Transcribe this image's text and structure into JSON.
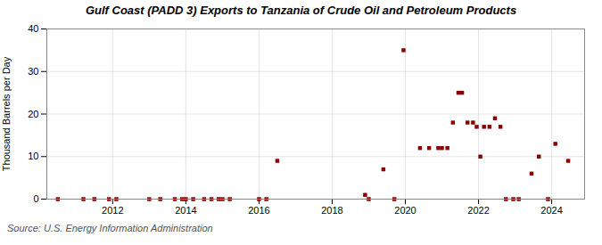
{
  "chart_data": {
    "type": "scatter",
    "title": "Gulf Coast (PADD 3) Exports to Tanzania of Crude Oil and Petroleum Products",
    "ylabel": "Thousand Barrels per Day",
    "source": "Source: U.S. Energy Information Administration",
    "color": "#8b0000",
    "marker": "square",
    "grid": true,
    "xlim": [
      2010.2,
      2024.9
    ],
    "xticks": [
      2012,
      2014,
      2016,
      2018,
      2020,
      2022,
      2024
    ],
    "ylim": [
      0,
      40
    ],
    "yticks": [
      0,
      10,
      20,
      30,
      40
    ],
    "x": [
      2010.5,
      2011.2,
      2011.5,
      2011.9,
      2012.1,
      2013.0,
      2013.3,
      2013.7,
      2013.9,
      2014.0,
      2014.2,
      2014.5,
      2014.7,
      2014.9,
      2015.0,
      2015.2,
      2016.0,
      2016.2,
      2016.5,
      2018.9,
      2019.0,
      2019.4,
      2019.7,
      2019.95,
      2020.4,
      2020.65,
      2020.9,
      2021.0,
      2021.15,
      2021.3,
      2021.45,
      2021.55,
      2021.7,
      2021.85,
      2021.95,
      2022.05,
      2022.15,
      2022.3,
      2022.45,
      2022.6,
      2022.75,
      2022.95,
      2023.1,
      2023.45,
      2023.65,
      2023.9,
      2024.1,
      2024.45
    ],
    "values": [
      0,
      0,
      0,
      0,
      0,
      0,
      0,
      0,
      0,
      0,
      0,
      0,
      0,
      0,
      0,
      0,
      0,
      0,
      9,
      1,
      0,
      7,
      0,
      35,
      12,
      12,
      12,
      12,
      12,
      18,
      25,
      25,
      18,
      18,
      17,
      10,
      17,
      17,
      19,
      17,
      0,
      0,
      0,
      6,
      10,
      0,
      13,
      9
    ]
  }
}
